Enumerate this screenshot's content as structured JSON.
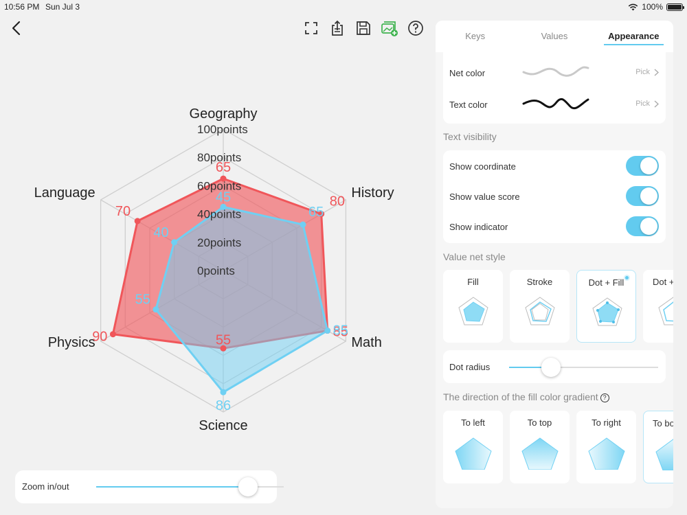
{
  "status_bar": {
    "time": "10:56 PM",
    "date": "Sun Jul 3",
    "battery": "100%"
  },
  "toolbar": {
    "icons": [
      "back-chevron-icon",
      "fullscreen-icon",
      "share-icon",
      "save-icon",
      "gallery-add-icon",
      "help-icon"
    ]
  },
  "chart_data": {
    "type": "radar",
    "axes": [
      "Geography",
      "History",
      "Math",
      "Science",
      "Physics",
      "Language"
    ],
    "scale_labels": [
      "0points",
      "20points",
      "40points",
      "60points",
      "80points",
      "100points"
    ],
    "range": [
      0,
      100
    ],
    "series": [
      {
        "values": [
          65,
          80,
          85,
          55,
          90,
          70
        ],
        "color": "#f0565a"
      },
      {
        "values": [
          45,
          65,
          85,
          86,
          55,
          40
        ],
        "color": "#6fd0f3"
      }
    ],
    "show_value_labels": true
  },
  "zoom": {
    "label": "Zoom in/out",
    "value": 0.81
  },
  "panel": {
    "tabs": [
      "Keys",
      "Values",
      "Appearance"
    ],
    "active_tab": "Appearance",
    "colors": {
      "net": {
        "label": "Net color",
        "pick": "Pick",
        "swatch": "#c9c9c9"
      },
      "text": {
        "label": "Text color",
        "pick": "Pick",
        "swatch": "#111111"
      }
    },
    "text_visibility": {
      "title": "Text visibility",
      "items": [
        {
          "label": "Show coordinate",
          "on": true
        },
        {
          "label": "Show value score",
          "on": true
        },
        {
          "label": "Show indicator",
          "on": true
        }
      ]
    },
    "net_style": {
      "title": "Value net style",
      "options": [
        "Fill",
        "Stroke",
        "Dot + Fill",
        "Dot +"
      ],
      "selected": "Dot + Fill"
    },
    "dot_radius": {
      "label": "Dot radius",
      "value": 0.28
    },
    "gradient": {
      "title": "The direction of the fill color gradient",
      "options": [
        "To left",
        "To top",
        "To right",
        "To bo"
      ]
    }
  }
}
